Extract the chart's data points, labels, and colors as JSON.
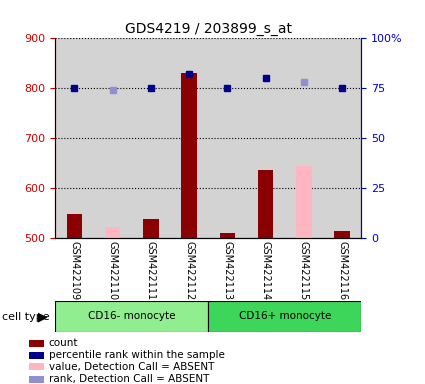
{
  "title": "GDS4219 / 203899_s_at",
  "samples": [
    "GSM422109",
    "GSM422110",
    "GSM422111",
    "GSM422112",
    "GSM422113",
    "GSM422114",
    "GSM422115",
    "GSM422116"
  ],
  "ylim_left": [
    500,
    900
  ],
  "ylim_right": [
    0,
    100
  ],
  "yticks_left": [
    500,
    600,
    700,
    800,
    900
  ],
  "yticks_right": [
    0,
    25,
    50,
    75,
    100
  ],
  "count_values": [
    548,
    null,
    538,
    830,
    510,
    636,
    null,
    515
  ],
  "count_absent_values": [
    null,
    522,
    null,
    null,
    null,
    null,
    645,
    null
  ],
  "rank_values": [
    75,
    null,
    75,
    82,
    75,
    80,
    null,
    75
  ],
  "rank_absent_values": [
    null,
    74,
    null,
    null,
    null,
    null,
    78,
    null
  ],
  "count_color": "#8B0000",
  "count_absent_color": "#FFB6C1",
  "rank_color": "#00008B",
  "rank_absent_color": "#9090D0",
  "bar_bg_color": "#D3D3D3",
  "cell_type_groups": [
    {
      "label": "CD16- monocyte",
      "indices": [
        0,
        1,
        2,
        3
      ],
      "color": "#90EE90"
    },
    {
      "label": "CD16+ monocyte",
      "indices": [
        4,
        5,
        6,
        7
      ],
      "color": "#3DD65A"
    }
  ],
  "left_axis_color": "#CC0000",
  "right_axis_color": "#0000CC"
}
